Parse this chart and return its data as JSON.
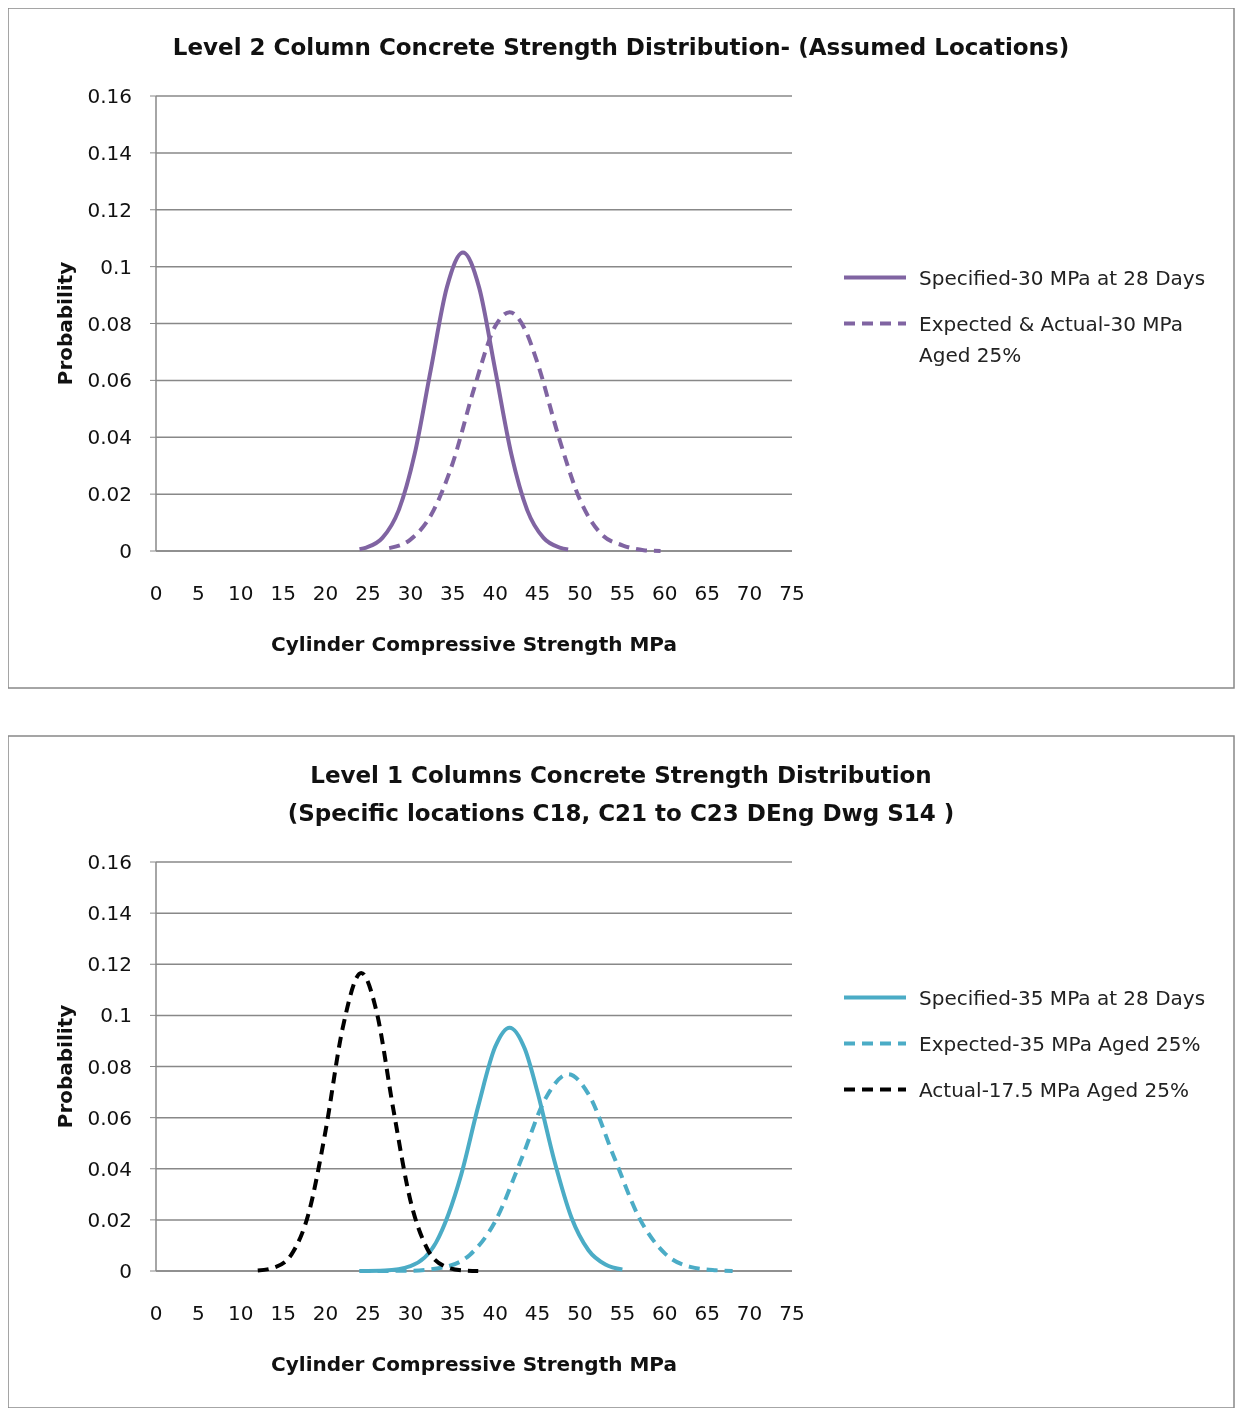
{
  "chart_data": [
    {
      "type": "line",
      "title": "Level 2 Column Concrete Strength Distribution- (Assumed Locations)",
      "xlabel": "Cylinder Compressive  Strength MPa",
      "ylabel": "Probability",
      "xlim": [
        0,
        75
      ],
      "xticks": [
        0,
        5,
        10,
        15,
        20,
        25,
        30,
        35,
        40,
        45,
        50,
        55,
        60,
        65,
        70,
        75
      ],
      "ylim": [
        0,
        0.16
      ],
      "yticks": [
        0,
        0.02,
        0.04,
        0.06,
        0.08,
        0.1,
        0.12,
        0.14,
        0.16
      ],
      "grid": "y",
      "legend": "right",
      "series": [
        {
          "name": "Specified-30 MPa at 28 Days",
          "color": "#8064a2",
          "line_style": "solid",
          "x": [
            24,
            24.8,
            26.7,
            28.6,
            30.5,
            32.4,
            34.3,
            36.2,
            38.1,
            40,
            41.9,
            43.8,
            45.7,
            47.6,
            48.6
          ],
          "values": [
            0.0006,
            0.0012,
            0.0046,
            0.0142,
            0.0341,
            0.0637,
            0.0927,
            0.105,
            0.0927,
            0.0637,
            0.0341,
            0.0142,
            0.0046,
            0.0012,
            0.0005
          ]
        },
        {
          "name": "Expected & Actual-30 MPa Aged 25%",
          "color": "#8064a2",
          "line_style": "dashed",
          "x": [
            27.5,
            30,
            32.5,
            35,
            37.5,
            40,
            41.7,
            43.5,
            45,
            47.5,
            50,
            52.5,
            55,
            57.5,
            59.5
          ],
          "values": [
            0.001,
            0.004,
            0.013,
            0.031,
            0.057,
            0.079,
            0.084,
            0.078,
            0.066,
            0.04,
            0.018,
            0.006,
            0.002,
            0.0003,
            0
          ]
        }
      ]
    },
    {
      "type": "line",
      "title": "Level 1 Columns Concrete Strength Distribution",
      "subtitle": "(Specific locations C18, C21 to C23 DEng Dwg S14 )",
      "xlabel": "Cylinder Compressive  Strength MPa",
      "ylabel": "Probability",
      "xlim": [
        0,
        75
      ],
      "xticks": [
        0,
        5,
        10,
        15,
        20,
        25,
        30,
        35,
        40,
        45,
        50,
        55,
        60,
        65,
        70,
        75
      ],
      "ylim": [
        0,
        0.16
      ],
      "yticks": [
        0,
        0.02,
        0.04,
        0.06,
        0.08,
        0.1,
        0.12,
        0.14,
        0.16
      ],
      "grid": "y",
      "legend": "right",
      "series": [
        {
          "name": "Specified-35 MPa at 28 Days",
          "color": "#4bacc6",
          "line_style": "solid",
          "x": [
            24,
            27,
            30,
            33,
            36,
            38,
            40,
            41.7,
            43.5,
            45,
            47,
            49,
            51,
            53,
            55
          ],
          "values": [
            0,
            0.0002,
            0.0019,
            0.011,
            0.0378,
            0.0645,
            0.0877,
            0.0952,
            0.0868,
            0.0698,
            0.0428,
            0.0208,
            0.0081,
            0.0025,
            0.0006
          ]
        },
        {
          "name": "Expected-35 MPa Aged 25%",
          "color": "#4bacc6",
          "line_style": "dashed",
          "x": [
            24,
            30,
            34,
            37,
            40,
            43,
            46,
            48.6,
            51,
            54,
            57,
            60,
            63,
            66,
            68
          ],
          "values": [
            0,
            0.0001,
            0.0015,
            0.0063,
            0.0194,
            0.043,
            0.0679,
            0.077,
            0.0692,
            0.0447,
            0.0207,
            0.0069,
            0.0016,
            0.0003,
            0
          ]
        },
        {
          "name": "Actual-17.5 MPa Aged 25%",
          "color": "#000000",
          "line_style": "dashed",
          "x": [
            12,
            14,
            16,
            18,
            20,
            22,
            24.2,
            26,
            28,
            30,
            32,
            34,
            36,
            38
          ],
          "values": [
            0.0002,
            0.0014,
            0.0066,
            0.0226,
            0.0549,
            0.0948,
            0.1166,
            0.1016,
            0.063,
            0.0276,
            0.0086,
            0.0019,
            0.0003,
            0
          ]
        }
      ]
    }
  ]
}
